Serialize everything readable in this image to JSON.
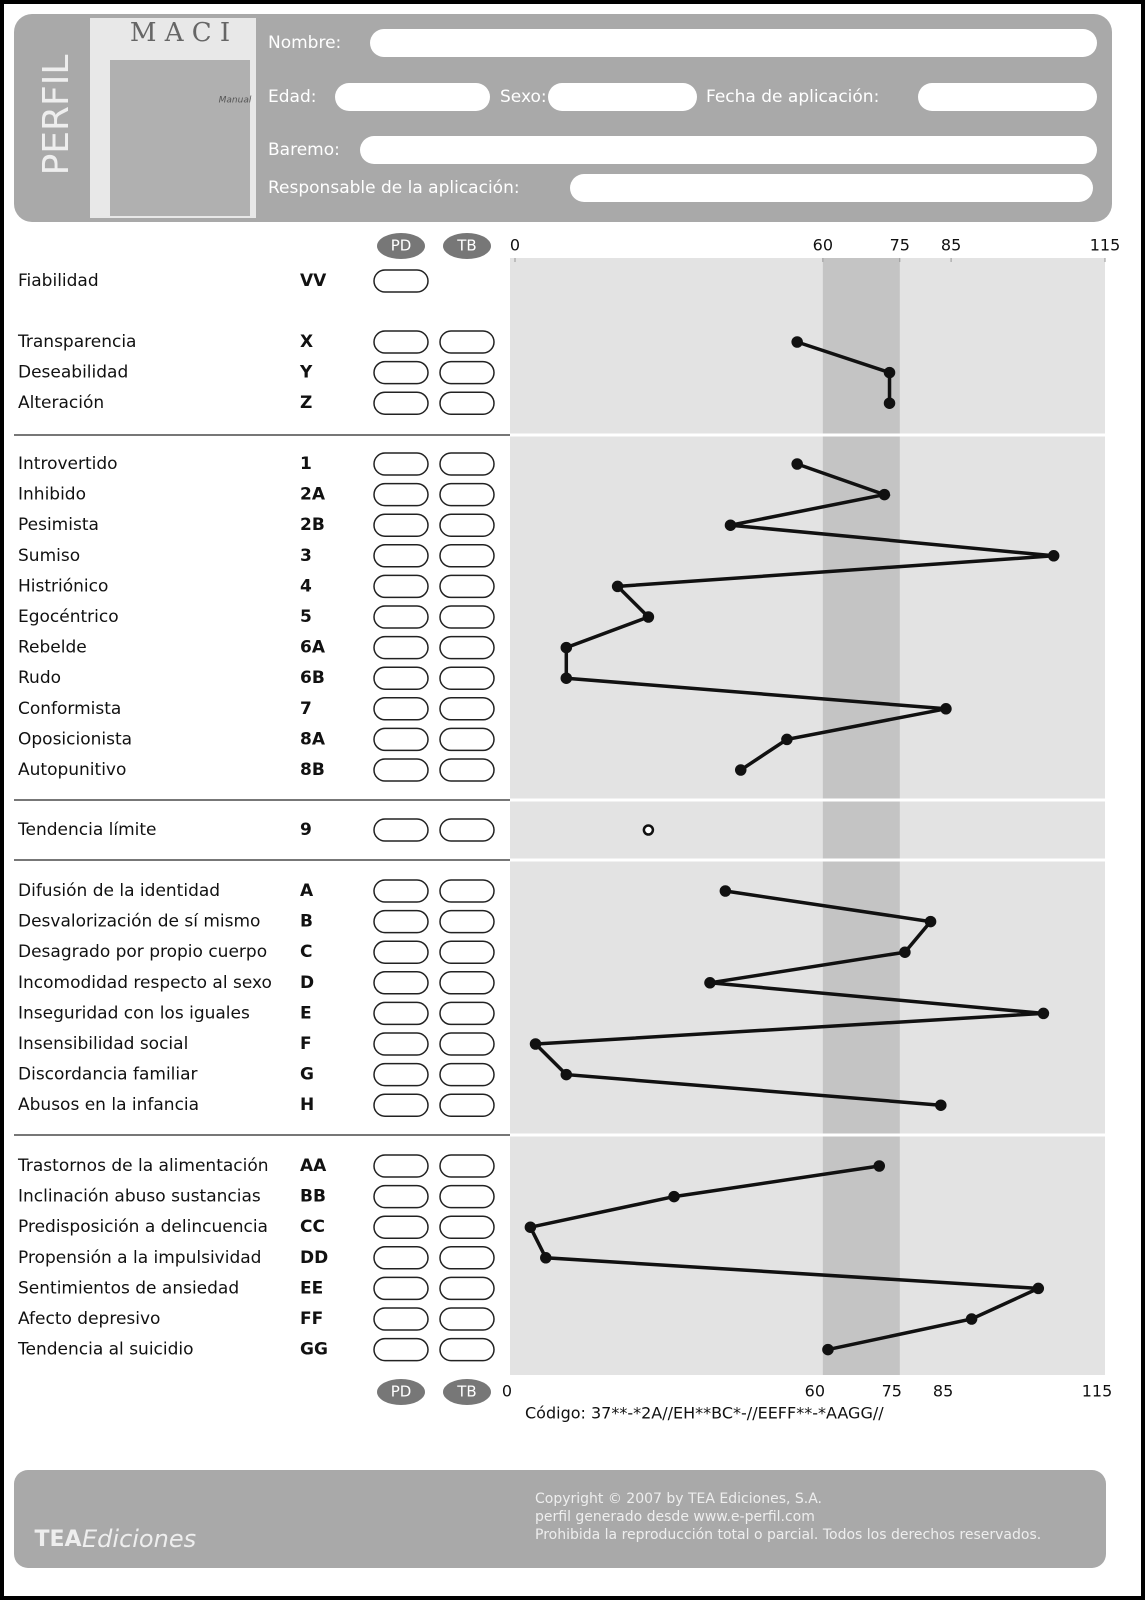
{
  "header": {
    "side_label": "PERFIL",
    "logo_title": "M A C I",
    "logo_subtitle": "Manual",
    "fields": [
      "Nombre:",
      "Edad:",
      "Sexo:",
      "Fecha de aplicación:",
      "Baremo:",
      "Responsable de la aplicación:"
    ]
  },
  "chart_data": {
    "type": "profile",
    "column_labels": [
      "PD",
      "TB"
    ],
    "xlim": [
      0,
      115
    ],
    "xticks": [
      0,
      60,
      75,
      85,
      115
    ],
    "groups": [
      {
        "labels": [
          "Fiabilidad"
        ],
        "codes": [
          "VV"
        ],
        "values": [
          null
        ]
      },
      {
        "labels": [
          "Transparencia",
          "Deseabilidad",
          "Alteración"
        ],
        "codes": [
          "X",
          "Y",
          "Z"
        ],
        "values": [
          55,
          73,
          73
        ]
      },
      {
        "labels": [
          "Introvertido",
          "Inhibido",
          "Pesimista",
          "Sumiso",
          "Histriónico",
          "Egocéntrico",
          "Rebelde",
          "Rudo",
          "Conformista",
          "Oposicionista",
          "Autopunitivo"
        ],
        "codes": [
          "1",
          "2A",
          "2B",
          "3",
          "4",
          "5",
          "6A",
          "6B",
          "7",
          "8A",
          "8B"
        ],
        "values": [
          55,
          72,
          42,
          105,
          20,
          26,
          10,
          10,
          84,
          53,
          44
        ]
      },
      {
        "labels": [
          "Tendencia límite"
        ],
        "codes": [
          "9"
        ],
        "values": [
          26
        ]
      },
      {
        "labels": [
          "Difusión de la identidad",
          "Desvalorización de sí mismo",
          "Desagrado por propio cuerpo",
          "Incomodidad respecto al sexo",
          "Inseguridad con los iguales",
          "Insensibilidad social",
          "Discordancia familiar",
          "Abusos en la infancia"
        ],
        "codes": [
          "A",
          "B",
          "C",
          "D",
          "E",
          "F",
          "G",
          "H"
        ],
        "values": [
          41,
          81,
          76,
          38,
          103,
          4,
          10,
          83
        ]
      },
      {
        "labels": [
          "Trastornos de la alimentación",
          "Inclinación abuso sustancias",
          "Predisposición a delincuencia",
          "Propensión a la impulsividad",
          "Sentimientos de ansiedad",
          "Afecto depresivo",
          "Tendencia al suicidio"
        ],
        "codes": [
          "AA",
          "BB",
          "CC",
          "DD",
          "EE",
          "FF",
          "GG"
        ],
        "values": [
          71,
          31,
          3,
          6,
          102,
          89,
          61
        ]
      }
    ],
    "code_text": "Código: 37**-*2A//EH**BC*-//EEFF**-*AAGG//"
  },
  "footer": {
    "logo": "TEA",
    "brand": "Ediciones",
    "copyright": [
      "Copyright © 2007 by TEA Ediciones, S.A.",
      "perfil generado desde www.e-perfil.com",
      "Prohibida la reproducción total o parcial. Todos los derechos reservados."
    ]
  }
}
